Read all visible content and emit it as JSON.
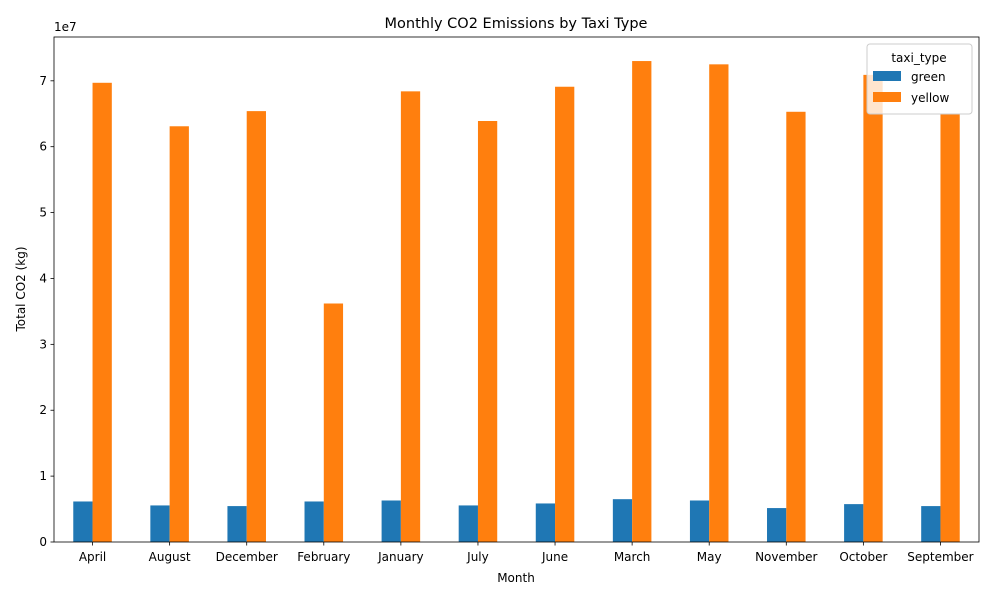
{
  "chart_data": {
    "type": "bar",
    "title": "Monthly CO2 Emissions by Taxi Type",
    "xlabel": "Month",
    "ylabel": "Total CO2 (kg)",
    "y_offset_text": "1e7",
    "ylim": [
      0,
      76650000
    ],
    "yticks": [
      0,
      10000000,
      20000000,
      30000000,
      40000000,
      50000000,
      60000000,
      70000000
    ],
    "ytick_labels": [
      "0",
      "1",
      "2",
      "3",
      "4",
      "5",
      "6",
      "7"
    ],
    "categories": [
      "April",
      "August",
      "December",
      "February",
      "January",
      "July",
      "June",
      "March",
      "May",
      "November",
      "October",
      "September"
    ],
    "legend": {
      "title": "taxi_type",
      "position": "top-right"
    },
    "grid": false,
    "series": [
      {
        "name": "green",
        "color": "#1f77b4",
        "values": [
          6150000,
          5550000,
          5450000,
          6150000,
          6300000,
          5550000,
          5850000,
          6500000,
          6300000,
          5150000,
          5750000,
          5450000
        ]
      },
      {
        "name": "yellow",
        "color": "#ff7f0e",
        "values": [
          69700000,
          63100000,
          65400000,
          36200000,
          68400000,
          63900000,
          69100000,
          73000000,
          72500000,
          65300000,
          70900000,
          64900000
        ]
      }
    ]
  }
}
